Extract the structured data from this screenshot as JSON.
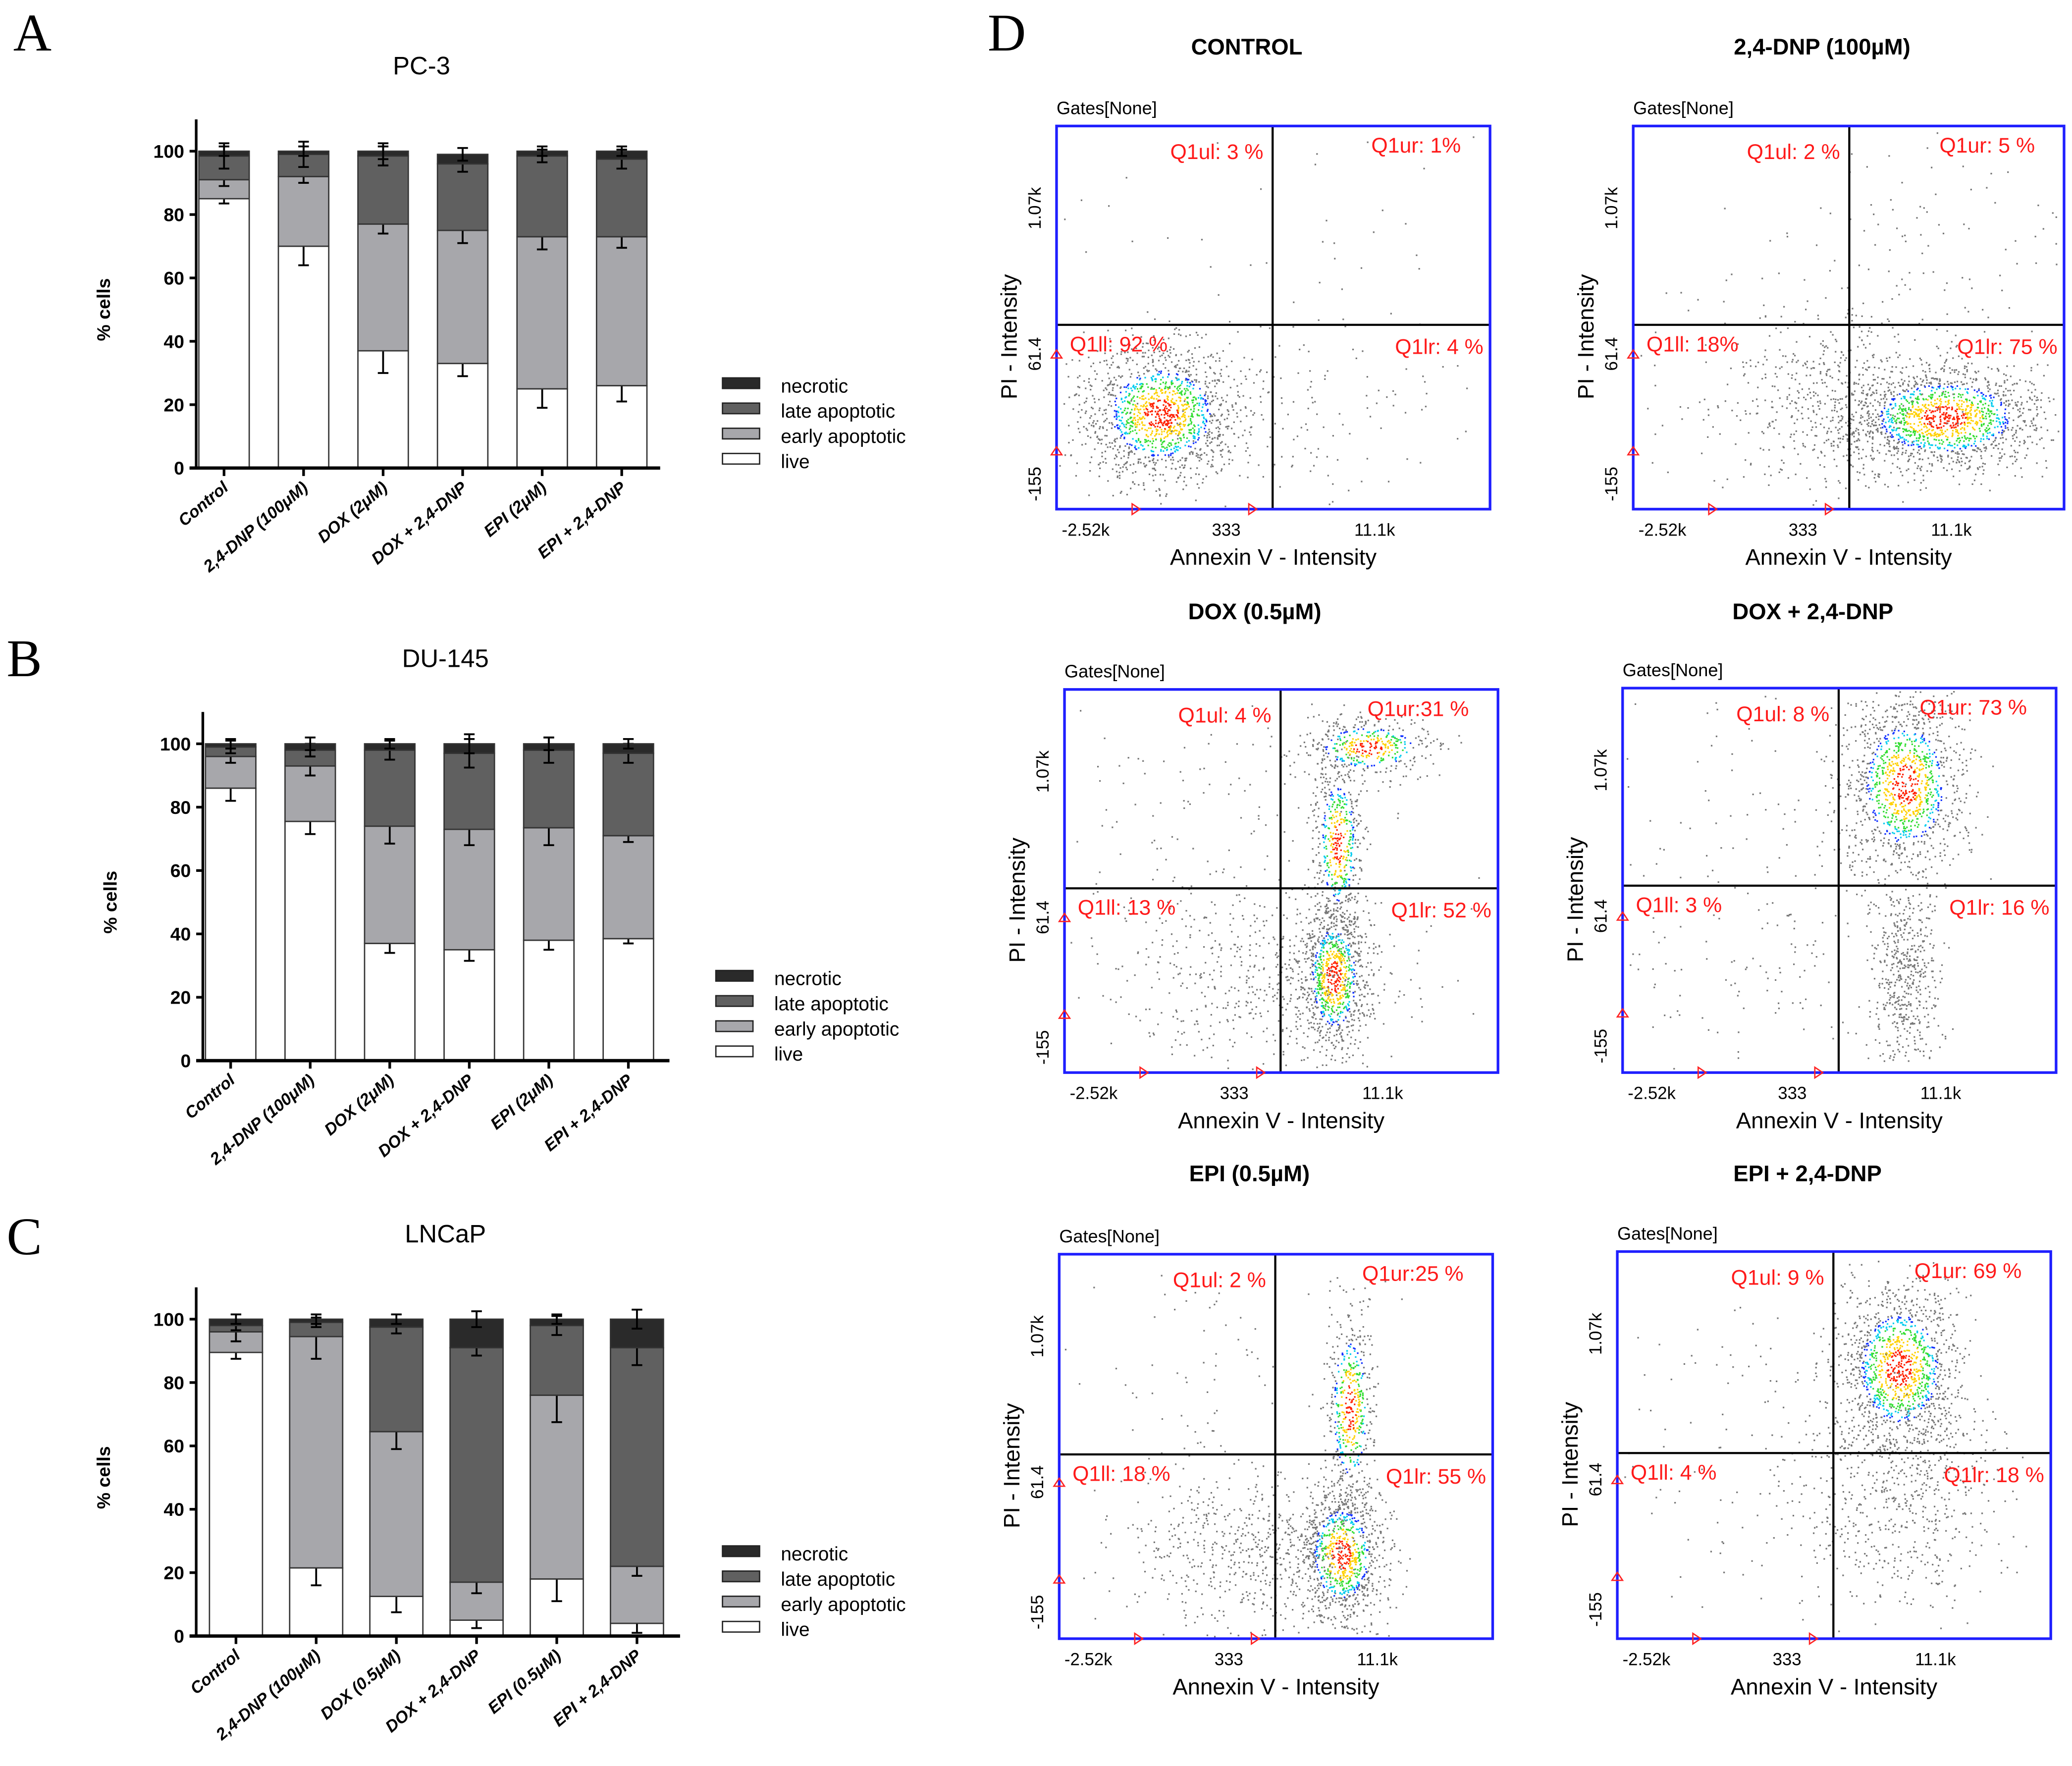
{
  "panel_letters": [
    "A",
    "B",
    "C",
    "D"
  ],
  "legend": [
    "necrotic",
    "late apoptotic",
    "early apoptotic",
    "live"
  ],
  "colors": {
    "live": "#ffffff",
    "early": "#a7a7ab",
    "late": "#606060",
    "necrotic": "#2a2a2a",
    "box": "#1f1fff",
    "quad_label": "#ff1a1a"
  },
  "chart_data": [
    {
      "type": "bar",
      "stacked": true,
      "title": "PC-3",
      "ylabel": "% cells",
      "xlabel": "",
      "ylim": [
        0,
        110
      ],
      "yticks": [
        0,
        20,
        40,
        60,
        80,
        100
      ],
      "categories": [
        "Control",
        "2,4-DNP (100μM)",
        "DOX (2μM)",
        "DOX + 2,4-DNP",
        "EPI (2μM)",
        "EPI + 2,4-DNP"
      ],
      "series": [
        {
          "name": "live",
          "values": [
            85,
            70,
            37,
            33,
            25,
            26
          ],
          "err": [
            1.5,
            6,
            7,
            4,
            6,
            5
          ]
        },
        {
          "name": "early apoptotic",
          "values": [
            6,
            22,
            40,
            42,
            48,
            47
          ],
          "err": [
            2,
            2,
            3,
            4,
            4,
            3.5
          ]
        },
        {
          "name": "late apoptotic",
          "values": [
            7.5,
            7,
            21.5,
            21,
            25.5,
            24.5
          ],
          "err": [
            4,
            4,
            3,
            2.5,
            2,
            3
          ]
        },
        {
          "name": "necrotic",
          "values": [
            1.5,
            1,
            1.5,
            3,
            1.5,
            2.5
          ],
          "err": [
            1.5,
            1.5,
            2.5,
            2,
            1.5,
            1.5
          ]
        }
      ]
    },
    {
      "type": "bar",
      "stacked": true,
      "title": "DU-145",
      "ylabel": "% cells",
      "xlabel": "",
      "ylim": [
        0,
        110
      ],
      "yticks": [
        0,
        20,
        40,
        60,
        80,
        100
      ],
      "categories": [
        "Control",
        "2,4-DNP (100μM)",
        "DOX (2μM)",
        "DOX + 2,4-DNP",
        "EPI (2μM)",
        "EPI + 2,4-DNP"
      ],
      "series": [
        {
          "name": "live",
          "values": [
            86,
            75.5,
            37,
            35,
            38,
            38.5
          ],
          "err": [
            4,
            4,
            3,
            3.5,
            3,
            1.5
          ]
        },
        {
          "name": "early apoptotic",
          "values": [
            10,
            17.5,
            37,
            38,
            35.5,
            32.5
          ],
          "err": [
            2,
            3,
            5.5,
            5,
            5.5,
            2
          ]
        },
        {
          "name": "late apoptotic",
          "values": [
            3,
            5,
            24,
            24,
            24.5,
            26
          ],
          "err": [
            2,
            2,
            3,
            4.5,
            4,
            3
          ]
        },
        {
          "name": "necrotic",
          "values": [
            1,
            2,
            2,
            3,
            2,
            3
          ],
          "err": [
            1.5,
            2,
            1.5,
            3,
            2,
            1.5
          ]
        }
      ]
    },
    {
      "type": "bar",
      "stacked": true,
      "title": "LNCaP",
      "ylabel": "% cells",
      "xlabel": "",
      "ylim": [
        0,
        110
      ],
      "yticks": [
        0,
        20,
        40,
        60,
        80,
        100
      ],
      "categories": [
        "Control",
        "2,4-DNP (100μM)",
        "DOX (0.5μM)",
        "DOX + 2,4-DNP",
        "EPI (0.5μM)",
        "EPI + 2,4-DNP"
      ],
      "series": [
        {
          "name": "live",
          "values": [
            89.5,
            21.5,
            12.5,
            5,
            18,
            4
          ],
          "err": [
            2,
            5.5,
            5,
            2.5,
            7,
            3
          ]
        },
        {
          "name": "early apoptotic",
          "values": [
            6.5,
            73,
            52,
            12,
            58,
            18
          ],
          "err": [
            3,
            7,
            5.5,
            3.5,
            8.5,
            3
          ]
        },
        {
          "name": "late apoptotic",
          "values": [
            2,
            4.5,
            33,
            74,
            22,
            69
          ],
          "err": [
            1.5,
            1.5,
            2,
            2.5,
            3,
            5.5
          ]
        },
        {
          "name": "necrotic",
          "values": [
            2,
            1,
            2.5,
            9,
            2,
            9
          ],
          "err": [
            1.5,
            1.5,
            1.5,
            2.5,
            1.5,
            3
          ]
        }
      ]
    }
  ],
  "flow": {
    "gates_label": "Gates[None]",
    "xlabel": "Annexin V - Intensity",
    "ylabel": "PI - Intensity",
    "xticks": [
      "-2.52k",
      "333",
      "11.1k"
    ],
    "yticks": [
      "1.07k",
      "61.4",
      "-155"
    ],
    "plots": [
      {
        "title": "CONTROL",
        "ul": "Q1ul: 3 %",
        "ur": "Q1ur: 1%",
        "ll": "Q1ll: 92 %",
        "lr": "Q1lr: 4 %"
      },
      {
        "title": "2,4-DNP (100µM)",
        "ul": "Q1ul: 2 %",
        "ur": "Q1ur: 5 %",
        "ll": "Q1ll: 18%",
        "lr": "Q1lr: 75 %"
      },
      {
        "title": "DOX (0.5µM)",
        "ul": "Q1ul: 4 %",
        "ur": "Q1ur:31 %",
        "ll": "Q1ll: 13 %",
        "lr": "Q1lr: 52 %"
      },
      {
        "title": "DOX + 2,4-DNP",
        "ul": "Q1ul: 8 %",
        "ur": "Q1ur: 73 %",
        "ll": "Q1ll: 3 %",
        "lr": "Q1lr: 16 %"
      },
      {
        "title": "EPI (0.5µM)",
        "ul": "Q1ul: 2 %",
        "ur": "Q1ur:25 %",
        "ll": "Q1ll: 18 %",
        "lr": "Q1lr: 55 %"
      },
      {
        "title": "EPI + 2,4-DNP",
        "ul": "Q1ul: 9 %",
        "ur": "Q1ur: 69 %",
        "ll": "Q1ll: 4 %",
        "lr": "Q1lr: 18 %"
      }
    ]
  }
}
